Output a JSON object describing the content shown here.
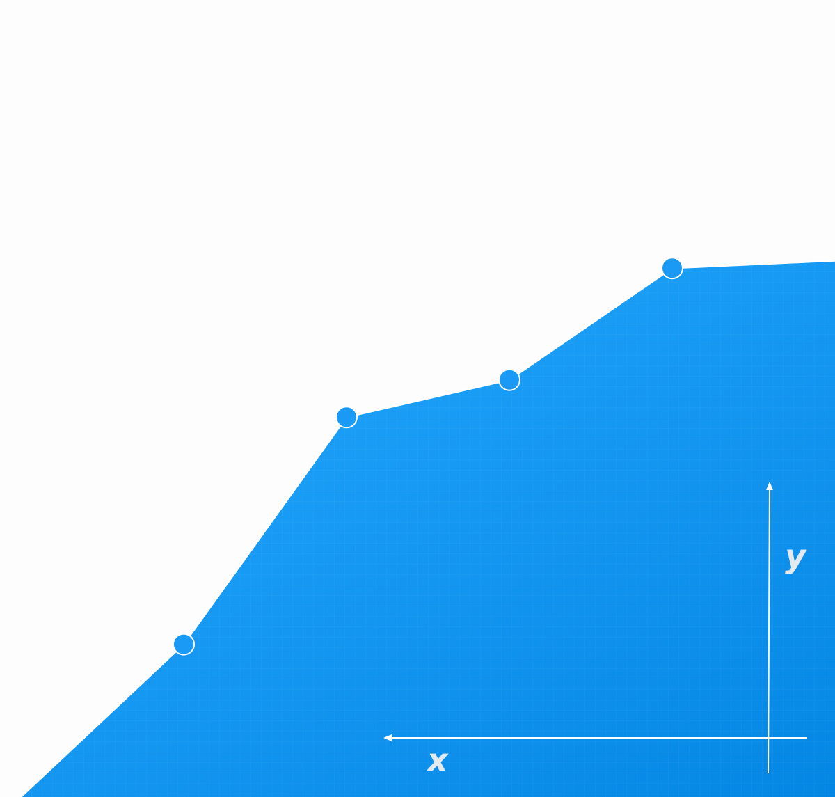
{
  "colors": {
    "background": "#fdfdfd",
    "area_fill_light": "#1c9ff7",
    "area_fill_dark": "#0486e4",
    "point_fill": "#1a9af4",
    "point_stroke": "#ffffff",
    "axis_line": "#ffffff",
    "axis_label": "#e4e9ee"
  },
  "chart_data": {
    "type": "area",
    "xlabel": "x",
    "ylabel": "y",
    "grid": true,
    "x": [
      0,
      1,
      2,
      3,
      4,
      5
    ],
    "series": [
      {
        "values": [
          0,
          2.05,
          5.1,
          5.6,
          7.1,
          7.2
        ],
        "marked_points": [
          1,
          2,
          3,
          4
        ]
      }
    ],
    "xlim": [
      0,
      5
    ],
    "ylim": [
      0,
      10.7
    ]
  }
}
